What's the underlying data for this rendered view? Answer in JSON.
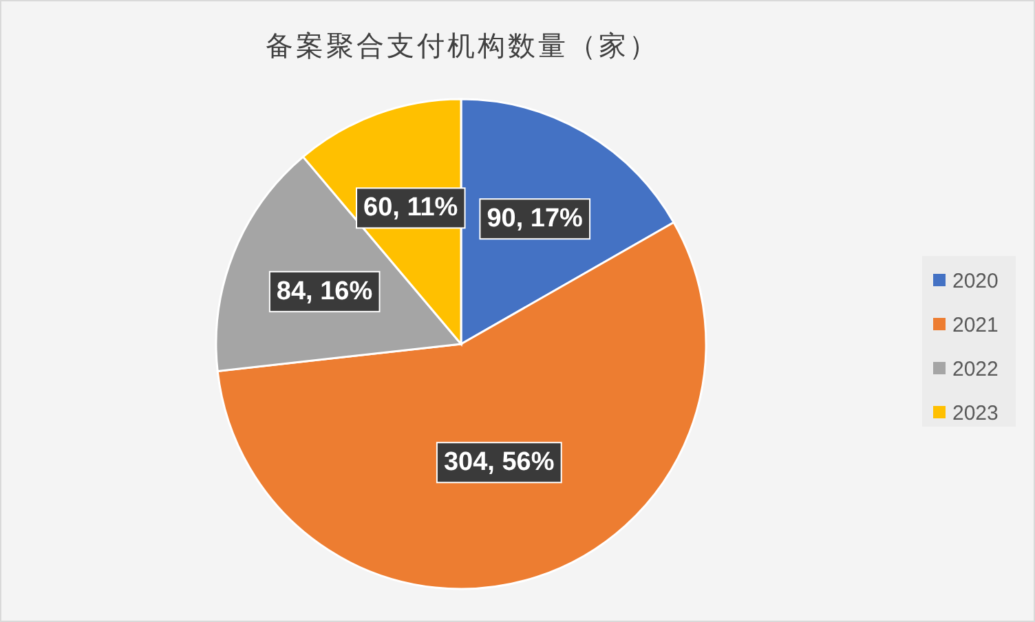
{
  "chart_data": {
    "type": "pie",
    "title": "备案聚合支付机构数量（家）",
    "categories": [
      "2020",
      "2021",
      "2022",
      "2023"
    ],
    "values": [
      90,
      304,
      84,
      60
    ],
    "value_labels": [
      "90, 17%",
      "304, 56%",
      "84, 16%",
      "60, 11%"
    ],
    "colors": [
      "#4472c4",
      "#ed7d31",
      "#a5a5a5",
      "#ffc000"
    ],
    "legend": "right"
  }
}
